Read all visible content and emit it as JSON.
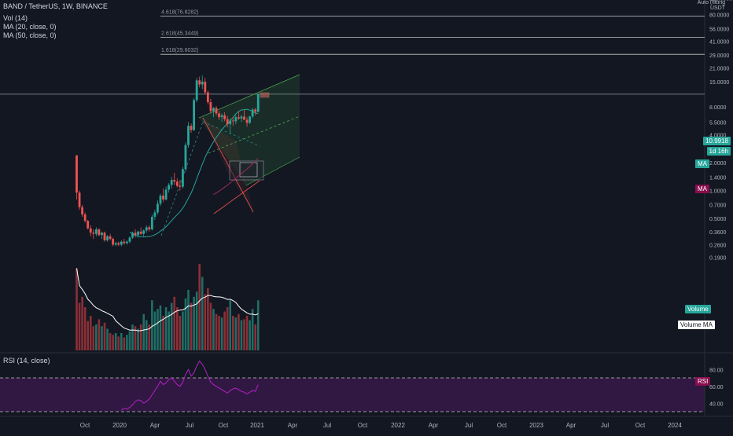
{
  "legend": {
    "symbol": "BAND / TetherUS, 1W, BINANCE",
    "vol": "Vol (14)",
    "ma1": "MA (20, close, 0)",
    "ma2": "MA (50, close, 0)",
    "rsi": "RSI (14, close)"
  },
  "price_scale": {
    "header_line1": "Auto (fitting",
    "header_line2": "USDT",
    "current_price": "10.9918",
    "countdown": "1d 16h",
    "ma_tag": "MA",
    "ma2_tag": "MA",
    "volume_tag": "Volume",
    "volume_ma_tag": "Volume MA",
    "rsi_tag": "RSI"
  },
  "fib_levels": [
    {
      "label": "4.618(76.8282)",
      "price": 76.8282
    },
    {
      "label": "2.618(45.3449)",
      "price": 45.3449
    },
    {
      "label": "1.618(29.6032)",
      "price": 29.6032
    }
  ],
  "colors": {
    "background": "#131722",
    "up": "#26a69a",
    "down": "#ef5350",
    "vol_up": "#1f6e66",
    "vol_down": "#8c2f36",
    "ma20": "#26a69a",
    "ma50": "#9c2a5e",
    "vol_ma": "#ffffff",
    "rsi_line": "#b51fc7",
    "rsi_band": "#3c1a4d",
    "hline": "#d1d4dc",
    "channel": "#3f8f4a",
    "tag_teal": "#26a69a",
    "tag_purple": "#880e4f"
  },
  "chart_data": {
    "type": "candlestick",
    "title": "BAND / TetherUS, 1W, BINANCE",
    "y_scale": "log",
    "y_ticks": [
      "120.0000",
      "80.0000",
      "56.0000",
      "41.0000",
      "29.0000",
      "21.0000",
      "15.0000",
      "8.0000",
      "5.5000",
      "4.0000",
      "2.8000",
      "2.0000",
      "1.4000",
      "1.0000",
      "0.7000",
      "0.5000",
      "0.3600",
      "0.2600",
      "0.1900"
    ],
    "rsi_ticks": [
      "80.00",
      "60.00",
      "40.00"
    ],
    "x_ticks": [
      "Oct",
      "2020",
      "Apr",
      "Jul",
      "Oct",
      "2021",
      "Apr",
      "Jul",
      "Oct",
      "2022",
      "Apr",
      "Jul",
      "Oct",
      "2023",
      "Apr",
      "Jul",
      "Oct",
      "2024"
    ],
    "current_price": 10.9918,
    "candles": [
      [
        2.4,
        2.4,
        0.8,
        0.95
      ],
      [
        0.95,
        1.0,
        0.62,
        0.66
      ],
      [
        0.66,
        0.7,
        0.52,
        0.55
      ],
      [
        0.55,
        0.58,
        0.45,
        0.47
      ],
      [
        0.47,
        0.48,
        0.38,
        0.39
      ],
      [
        0.39,
        0.42,
        0.32,
        0.35
      ],
      [
        0.35,
        0.38,
        0.3,
        0.34
      ],
      [
        0.34,
        0.4,
        0.32,
        0.38
      ],
      [
        0.38,
        0.39,
        0.32,
        0.33
      ],
      [
        0.33,
        0.36,
        0.3,
        0.35
      ],
      [
        0.35,
        0.36,
        0.28,
        0.29
      ],
      [
        0.29,
        0.33,
        0.28,
        0.32
      ],
      [
        0.32,
        0.34,
        0.29,
        0.3
      ],
      [
        0.3,
        0.31,
        0.25,
        0.26
      ],
      [
        0.26,
        0.28,
        0.25,
        0.27
      ],
      [
        0.27,
        0.28,
        0.25,
        0.26
      ],
      [
        0.26,
        0.29,
        0.25,
        0.28
      ],
      [
        0.28,
        0.3,
        0.26,
        0.27
      ],
      [
        0.27,
        0.29,
        0.26,
        0.28
      ],
      [
        0.28,
        0.32,
        0.27,
        0.31
      ],
      [
        0.31,
        0.36,
        0.3,
        0.35
      ],
      [
        0.35,
        0.38,
        0.31,
        0.33
      ],
      [
        0.33,
        0.37,
        0.31,
        0.36
      ],
      [
        0.36,
        0.4,
        0.33,
        0.34
      ],
      [
        0.34,
        0.38,
        0.32,
        0.37
      ],
      [
        0.37,
        0.42,
        0.35,
        0.4
      ],
      [
        0.4,
        0.42,
        0.36,
        0.38
      ],
      [
        0.38,
        0.55,
        0.37,
        0.52
      ],
      [
        0.52,
        0.62,
        0.48,
        0.58
      ],
      [
        0.58,
        0.78,
        0.55,
        0.72
      ],
      [
        0.72,
        0.92,
        0.68,
        0.88
      ],
      [
        0.88,
        1.05,
        0.75,
        0.8
      ],
      [
        0.8,
        1.1,
        0.78,
        1.02
      ],
      [
        1.02,
        1.2,
        0.95,
        1.15
      ],
      [
        1.15,
        1.4,
        1.05,
        1.3
      ],
      [
        1.3,
        1.55,
        1.15,
        1.25
      ],
      [
        1.25,
        1.35,
        1.08,
        1.12
      ],
      [
        1.12,
        1.3,
        1.0,
        1.1
      ],
      [
        1.1,
        1.8,
        1.05,
        1.7
      ],
      [
        1.7,
        3.3,
        1.6,
        3.1
      ],
      [
        3.1,
        5.5,
        2.9,
        5.0
      ],
      [
        5.0,
        5.3,
        4.2,
        4.5
      ],
      [
        4.5,
        10.0,
        4.4,
        9.5
      ],
      [
        9.5,
        16.5,
        9.0,
        15.5
      ],
      [
        15.5,
        17.0,
        13.0,
        14.0
      ],
      [
        14.0,
        17.5,
        12.5,
        15.0
      ],
      [
        15.0,
        16.5,
        11.0,
        11.5
      ],
      [
        11.5,
        12.0,
        8.5,
        9.0
      ],
      [
        9.0,
        9.8,
        6.8,
        7.2
      ],
      [
        7.2,
        8.0,
        6.2,
        7.8
      ],
      [
        7.8,
        8.2,
        6.5,
        6.8
      ],
      [
        6.8,
        7.2,
        5.8,
        6.2
      ],
      [
        6.2,
        6.8,
        5.5,
        6.5
      ],
      [
        6.5,
        7.0,
        5.6,
        5.9
      ],
      [
        5.9,
        6.4,
        4.8,
        5.2
      ],
      [
        5.2,
        6.0,
        4.1,
        5.7
      ],
      [
        5.7,
        6.3,
        5.0,
        5.6
      ],
      [
        5.6,
        6.5,
        5.2,
        6.2
      ],
      [
        6.2,
        7.2,
        5.8,
        6.0
      ],
      [
        6.0,
        6.6,
        5.5,
        6.3
      ],
      [
        6.3,
        7.4,
        5.9,
        5.8
      ],
      [
        5.8,
        6.2,
        4.9,
        5.4
      ],
      [
        5.4,
        6.4,
        5.2,
        6.3
      ],
      [
        6.3,
        7.8,
        6.0,
        7.5
      ],
      [
        7.5,
        7.8,
        6.5,
        7.1
      ],
      [
        7.1,
        11.2,
        7.0,
        10.99
      ]
    ],
    "volume_relative": [
      0.95,
      0.55,
      0.62,
      0.5,
      0.34,
      0.4,
      0.28,
      0.3,
      0.36,
      0.28,
      0.32,
      0.25,
      0.2,
      0.18,
      0.2,
      0.16,
      0.2,
      0.15,
      0.18,
      0.22,
      0.3,
      0.28,
      0.25,
      0.3,
      0.42,
      0.35,
      0.3,
      0.58,
      0.45,
      0.48,
      0.52,
      0.4,
      0.5,
      0.45,
      0.55,
      0.62,
      0.5,
      0.4,
      0.45,
      0.6,
      0.7,
      0.55,
      0.62,
      0.68,
      1.0,
      0.85,
      0.65,
      0.72,
      0.55,
      0.48,
      0.42,
      0.4,
      0.38,
      0.45,
      0.5,
      0.58,
      0.4,
      0.38,
      0.42,
      0.35,
      0.36,
      0.4,
      0.35,
      0.48,
      0.3,
      0.58
    ],
    "rsi_values": [
      null,
      null,
      null,
      null,
      null,
      null,
      null,
      null,
      null,
      null,
      null,
      null,
      null,
      null,
      null,
      null,
      32,
      34,
      33,
      35,
      38,
      42,
      44,
      43,
      40,
      42,
      45,
      50,
      55,
      60,
      66,
      62,
      64,
      68,
      70,
      66,
      62,
      60,
      65,
      74,
      80,
      72,
      76,
      84,
      90,
      86,
      80,
      72,
      65,
      62,
      60,
      58,
      56,
      54,
      52,
      55,
      57,
      58,
      56,
      54,
      53,
      51,
      53,
      55,
      54,
      62
    ]
  }
}
